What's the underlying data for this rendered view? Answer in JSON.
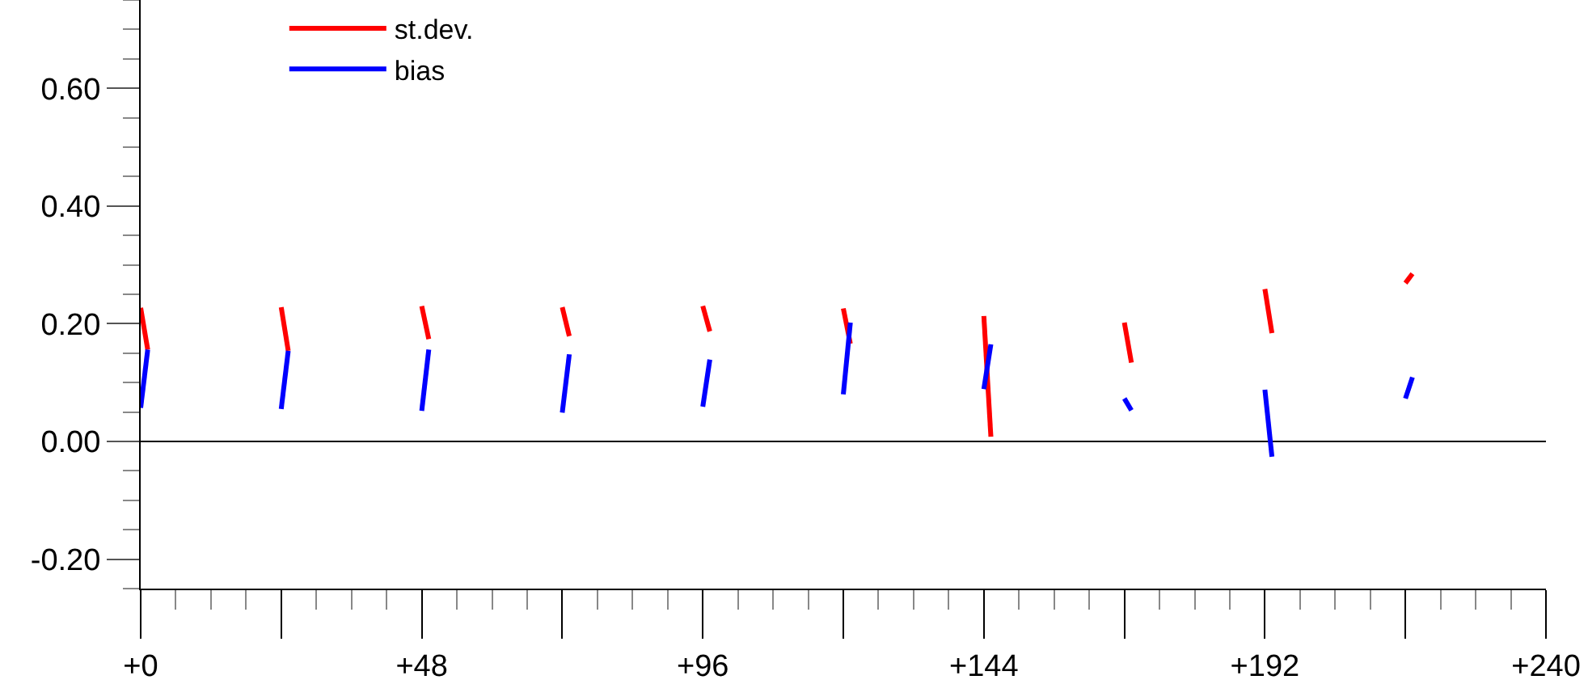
{
  "chart_data": {
    "type": "line",
    "x": [
      0,
      1.2,
      12,
      24,
      25.2,
      36,
      48,
      49.2,
      60,
      72,
      73.2,
      84,
      96,
      97.2,
      108,
      120,
      121.2,
      132,
      144,
      145.2,
      156,
      168,
      169.2,
      180,
      192,
      193.2,
      204,
      216,
      217.2
    ],
    "series": [
      {
        "name": "st.dev.",
        "color": "#ff0000",
        "values": [
          0.227,
          0.156,
          null,
          0.228,
          0.154,
          null,
          0.23,
          0.174,
          null,
          0.228,
          0.179,
          null,
          0.23,
          0.187,
          null,
          0.226,
          0.166,
          null,
          0.213,
          0.008,
          null,
          0.202,
          0.134,
          null,
          0.259,
          0.184,
          null,
          0.269,
          0.285
        ]
      },
      {
        "name": "bias",
        "color": "#0000ff",
        "values": [
          0.057,
          0.156,
          null,
          0.055,
          0.154,
          null,
          0.052,
          0.156,
          null,
          0.049,
          0.148,
          null,
          0.059,
          0.139,
          null,
          0.08,
          0.202,
          null,
          0.089,
          0.165,
          null,
          0.073,
          0.053,
          null,
          0.088,
          -0.026,
          null,
          0.073,
          0.109
        ]
      }
    ],
    "xlim": [
      0,
      240
    ],
    "xticks": [
      {
        "value": 0,
        "label": "+0"
      },
      {
        "value": 24,
        "label": null
      },
      {
        "value": 48,
        "label": "+48"
      },
      {
        "value": 72,
        "label": null
      },
      {
        "value": 96,
        "label": "+96"
      },
      {
        "value": 120,
        "label": null
      },
      {
        "value": 144,
        "label": "+144"
      },
      {
        "value": 168,
        "label": null
      },
      {
        "value": 192,
        "label": "+192"
      },
      {
        "value": 216,
        "label": null
      },
      {
        "value": 240,
        "label": "+240"
      }
    ],
    "ylim": [
      -0.25,
      0.75
    ],
    "yticks": [
      {
        "value": -0.2,
        "label": "-0.20"
      },
      {
        "value": 0,
        "label": "0.00"
      },
      {
        "value": 0.2,
        "label": "0.20"
      },
      {
        "value": 0.4,
        "label": "0.40"
      },
      {
        "value": 0.6,
        "label": "0.60"
      }
    ],
    "ref_lines": [
      {
        "axis": "y",
        "value": 0,
        "label": null,
        "color": "#000000"
      }
    ],
    "legend": "top left",
    "grid": false,
    "marker": "none",
    "line_style": "solid"
  }
}
